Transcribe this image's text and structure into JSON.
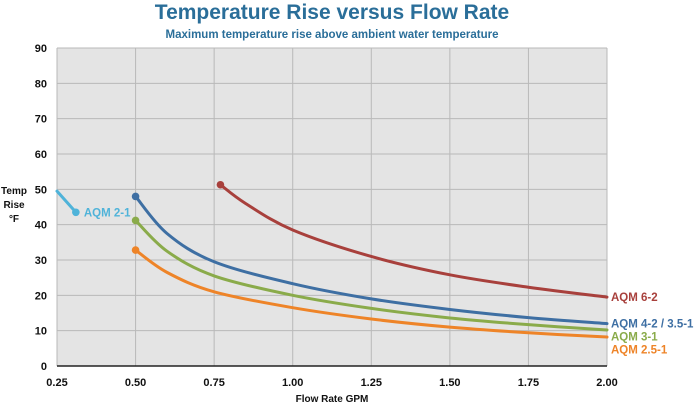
{
  "chart_data": {
    "type": "line",
    "title": "Temperature Rise versus Flow Rate",
    "subtitle": "Maximum temperature rise above ambient water temperature",
    "xlabel": "Flow Rate GPM",
    "ylabel_lines": [
      "Temp",
      "Rise",
      "°F"
    ],
    "xlim": [
      0.25,
      2.0
    ],
    "ylim": [
      0,
      90
    ],
    "xticks": [
      0.25,
      0.5,
      0.75,
      1.0,
      1.25,
      1.5,
      1.75,
      2.0
    ],
    "xtick_labels": [
      "0.25",
      "0.50",
      "0.75",
      "1.00",
      "1.25",
      "1.50",
      "1.75",
      "2.00"
    ],
    "yticks": [
      0,
      10,
      20,
      30,
      40,
      50,
      60,
      70,
      80,
      90
    ],
    "ytick_labels": [
      "0",
      "10",
      "20",
      "30",
      "40",
      "50",
      "60",
      "70",
      "80",
      "90"
    ],
    "grid": true,
    "series": [
      {
        "name": "AQM 2-1",
        "color": "#4fb3d9",
        "start_marker": false,
        "end_marker": true,
        "label_at": "end",
        "points": [
          [
            0.25,
            49.5
          ],
          [
            0.31,
            43.5
          ]
        ]
      },
      {
        "name": "AQM 6-2",
        "color": "#a8403c",
        "start_marker": true,
        "end_marker": false,
        "label_at": "right",
        "points": [
          [
            0.77,
            51.3
          ],
          [
            0.85,
            46
          ],
          [
            1.0,
            38.5
          ],
          [
            1.25,
            31
          ],
          [
            1.5,
            25.8
          ],
          [
            1.75,
            22.3
          ],
          [
            2.0,
            19.5
          ]
        ]
      },
      {
        "name": "AQM 4-2 / 3.5-1",
        "color": "#3e6fa3",
        "start_marker": true,
        "end_marker": false,
        "label_at": "right",
        "points": [
          [
            0.5,
            48
          ],
          [
            0.6,
            37.5
          ],
          [
            0.75,
            29.5
          ],
          [
            1.0,
            23.3
          ],
          [
            1.25,
            19
          ],
          [
            1.5,
            16
          ],
          [
            1.75,
            13.7
          ],
          [
            2.0,
            12
          ]
        ]
      },
      {
        "name": "AQM 3-1",
        "color": "#8aab4a",
        "start_marker": true,
        "end_marker": false,
        "label_at": "right",
        "points": [
          [
            0.5,
            41.2
          ],
          [
            0.6,
            32.5
          ],
          [
            0.75,
            25.5
          ],
          [
            1.0,
            20
          ],
          [
            1.25,
            16.3
          ],
          [
            1.5,
            13.6
          ],
          [
            1.75,
            11.7
          ],
          [
            2.0,
            10.2
          ]
        ]
      },
      {
        "name": "AQM 2.5-1",
        "color": "#ee8428",
        "start_marker": true,
        "end_marker": false,
        "label_at": "right",
        "points": [
          [
            0.5,
            32.8
          ],
          [
            0.6,
            26.5
          ],
          [
            0.75,
            21
          ],
          [
            1.0,
            16.5
          ],
          [
            1.25,
            13.3
          ],
          [
            1.5,
            11
          ],
          [
            1.75,
            9.4
          ],
          [
            2.0,
            8.2
          ]
        ]
      }
    ]
  }
}
